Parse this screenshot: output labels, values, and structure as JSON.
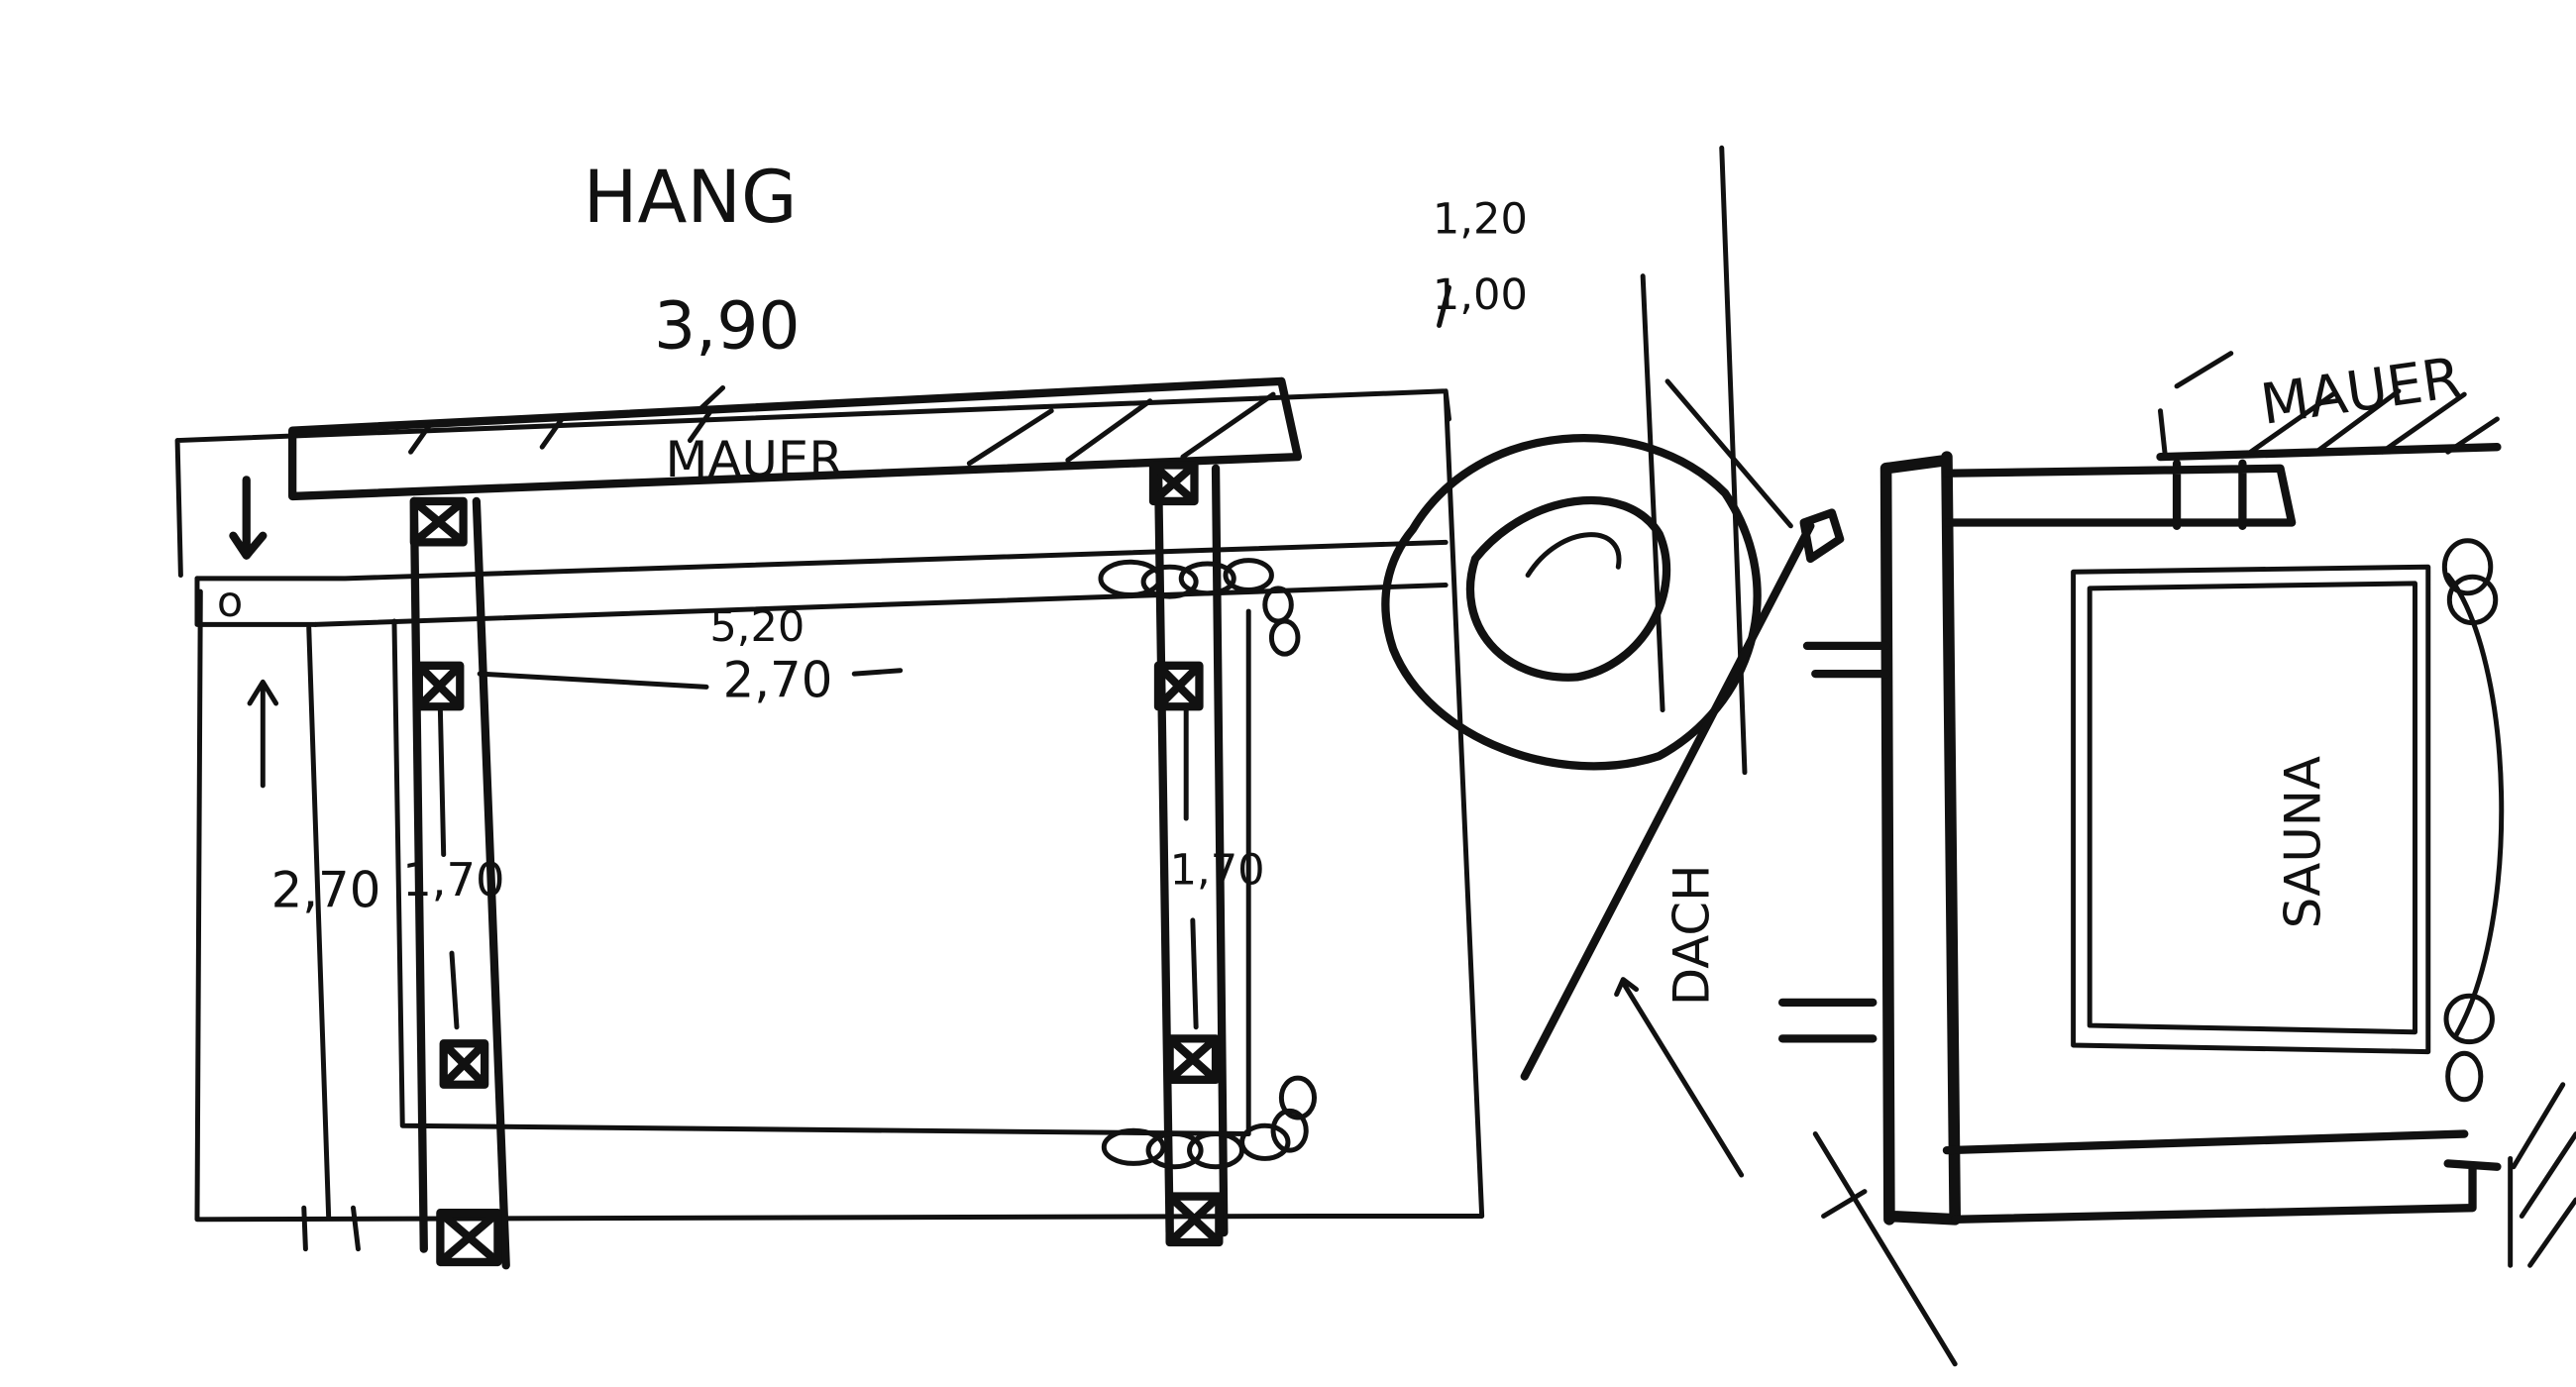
{
  "labels": {
    "hang": "HANG",
    "width_top": "3,90",
    "mauer_left": "MAUER",
    "mauer_right": "MAUER",
    "dim_120": "1,20",
    "dim_100": "1,00",
    "dim_520": "5,20",
    "dim_270_inner": "2,70",
    "dim_270_left": "2,70",
    "dim_170_left": "1,70",
    "dim_170_right": "1,70",
    "dach": "DACH",
    "sauna": "SAUNA",
    "marker_o": "o"
  },
  "colors": {
    "ink": "#111111",
    "paper": "#ffffff"
  }
}
